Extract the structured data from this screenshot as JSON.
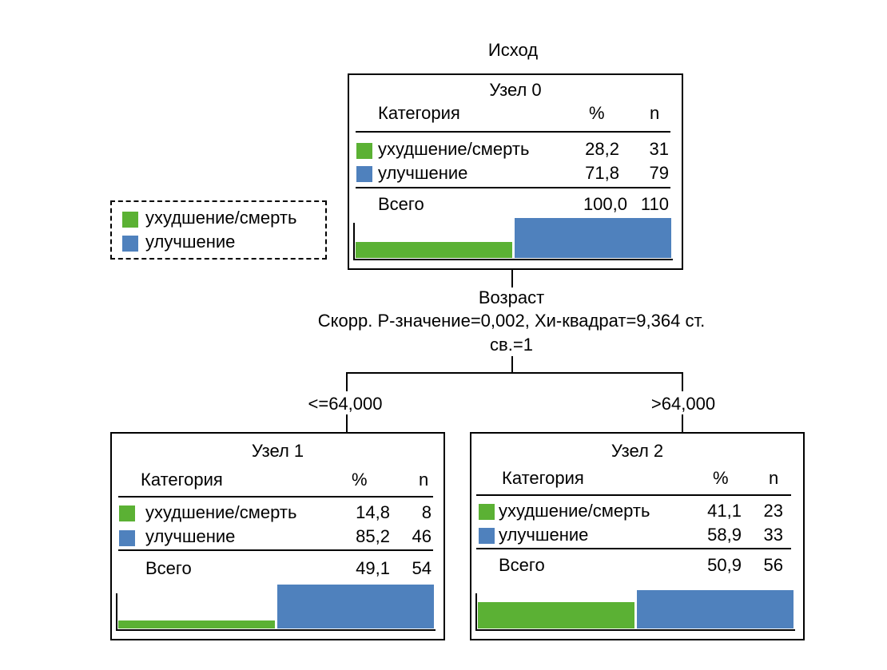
{
  "colors": {
    "worse": "#5bb134",
    "better": "#4f81bd"
  },
  "title": "Исход",
  "legend": {
    "items": [
      {
        "label": "ухудшение/смерть",
        "color": "#5bb134"
      },
      {
        "label": "улучшение",
        "color": "#4f81bd"
      }
    ]
  },
  "split": {
    "variable": "Возраст",
    "stats_line1": "Скорр. P-значение=0,002, Хи-квадрат=9,364 ст.",
    "stats_line2": "св.=1",
    "left_label": "<=64,000",
    "right_label": ">64,000"
  },
  "nodes": [
    {
      "name": "Узел 0",
      "head_category": "Категория",
      "head_pct": "%",
      "head_n": "n",
      "rows": [
        {
          "label": "ухудшение/смерть",
          "pct": "28,2",
          "n": "31"
        },
        {
          "label": "улучшение",
          "pct": "71,8",
          "n": "79"
        }
      ],
      "total_label": "Всего",
      "total_pct": "100,0",
      "total_n": "110",
      "bar_fractions": {
        "worse": 0.282,
        "better": 0.718
      }
    },
    {
      "name": "Узел 1",
      "head_category": "Категория",
      "head_pct": "%",
      "head_n": "n",
      "rows": [
        {
          "label": "ухудшение/смерть",
          "pct": "14,8",
          "n": "8"
        },
        {
          "label": "улучшение",
          "pct": "85,2",
          "n": "46"
        }
      ],
      "total_label": "Всего",
      "total_pct": "49,1",
      "total_n": "54",
      "bar_fractions": {
        "worse": 0.148,
        "better": 0.852
      }
    },
    {
      "name": "Узел 2",
      "head_category": "Категория",
      "head_pct": "%",
      "head_n": "n",
      "rows": [
        {
          "label": "ухудшение/смерть",
          "pct": "41,1",
          "n": "23"
        },
        {
          "label": "улучшение",
          "pct": "58,9",
          "n": "33"
        }
      ],
      "total_label": "Всего",
      "total_pct": "50,9",
      "total_n": "56",
      "bar_fractions": {
        "worse": 0.411,
        "better": 0.589
      }
    }
  ]
}
